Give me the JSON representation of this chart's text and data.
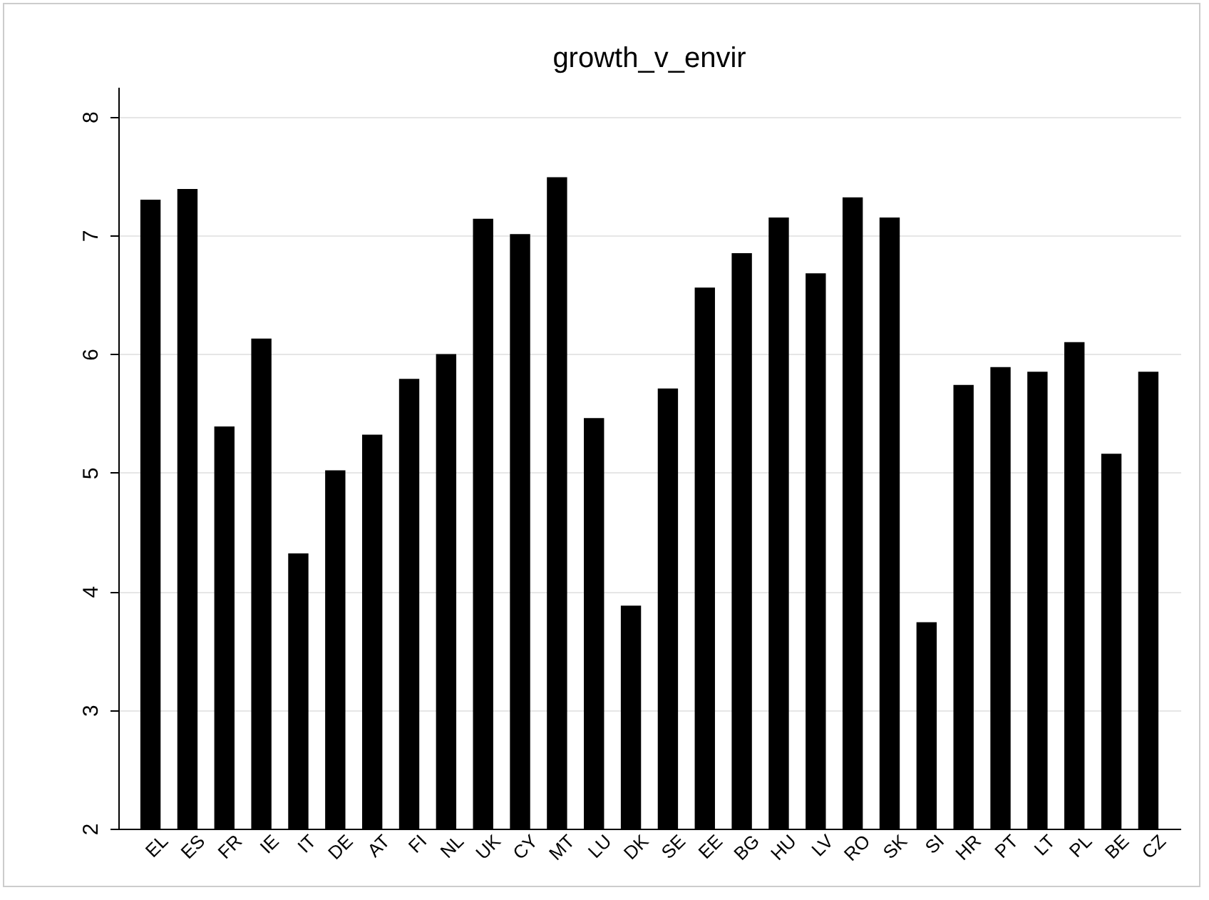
{
  "chart_data": {
    "type": "bar",
    "title": "growth_v_envir",
    "categories": [
      "EL",
      "ES",
      "FR",
      "IE",
      "IT",
      "DE",
      "AT",
      "FI",
      "NL",
      "UK",
      "CY",
      "MT",
      "LU",
      "DK",
      "SE",
      "EE",
      "BG",
      "HU",
      "LV",
      "RO",
      "SK",
      "SI",
      "HR",
      "PT",
      "LT",
      "PL",
      "BE",
      "CZ"
    ],
    "values": [
      7.3,
      7.39,
      5.39,
      6.13,
      4.32,
      5.02,
      5.32,
      5.79,
      6.0,
      7.14,
      7.01,
      7.49,
      5.46,
      3.88,
      5.71,
      6.56,
      6.85,
      7.15,
      6.68,
      7.32,
      7.15,
      3.74,
      5.74,
      5.89,
      5.85,
      6.1,
      5.16,
      5.85
    ],
    "color": "#000000",
    "ylim": [
      2,
      8.25
    ],
    "yticks": [
      2,
      3,
      4,
      5,
      6,
      7,
      8
    ],
    "grid": "y"
  }
}
